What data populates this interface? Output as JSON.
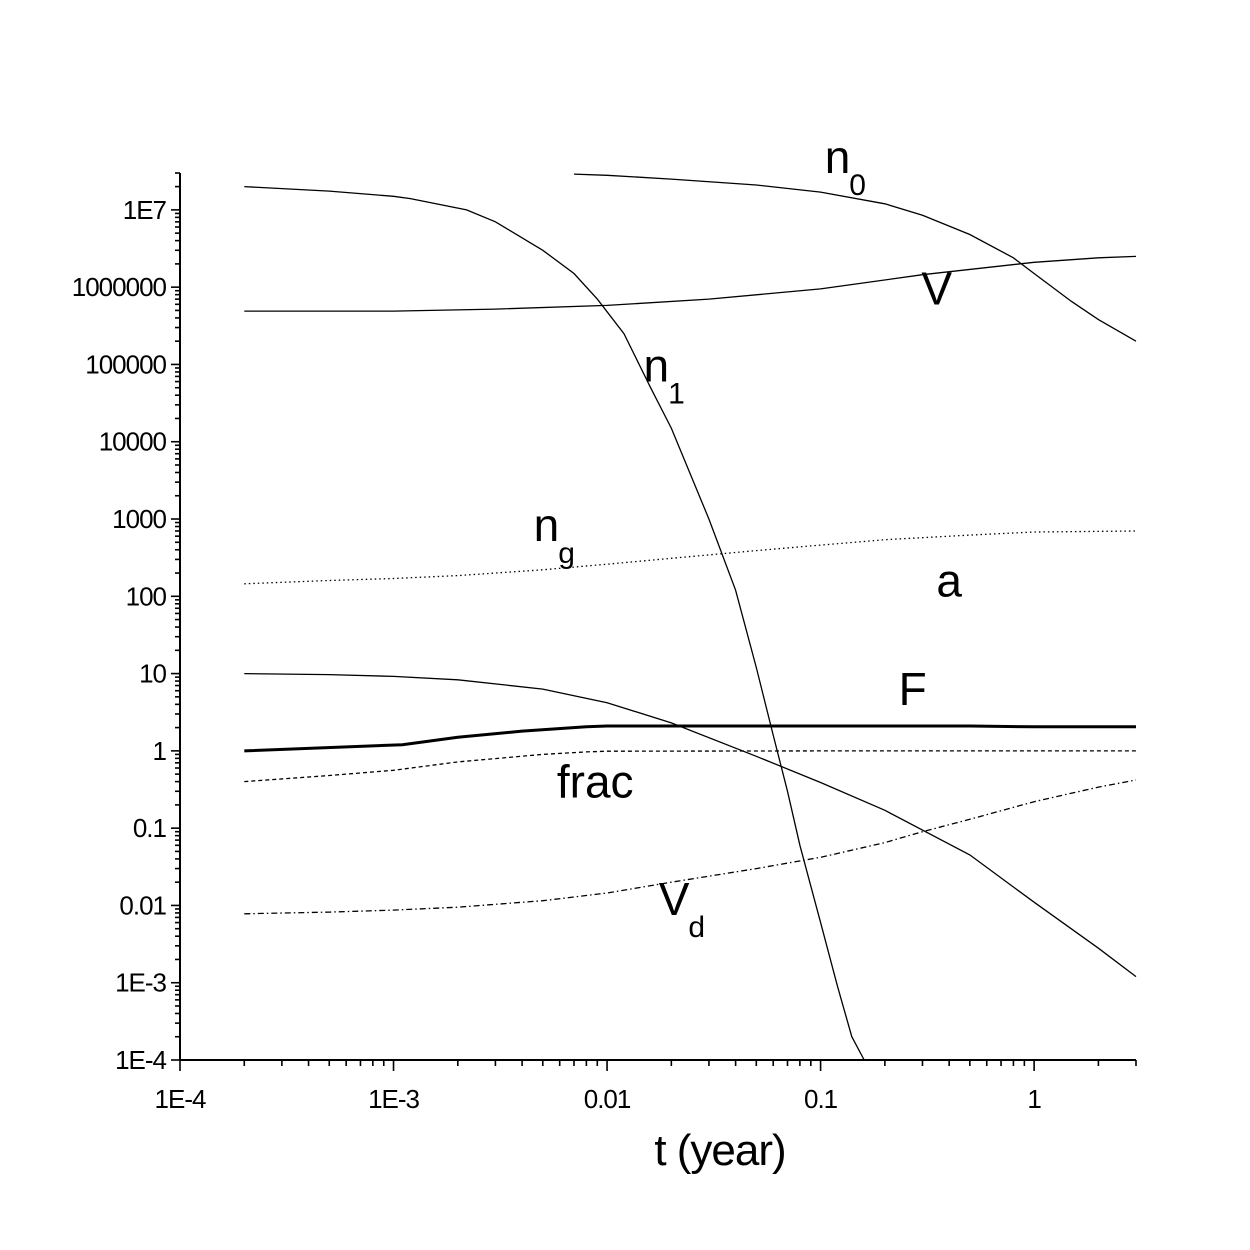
{
  "chart_data": {
    "type": "line",
    "title": "",
    "xlabel": "t (year)",
    "ylabel": "",
    "xscale": "log",
    "yscale": "log",
    "xlim": [
      0.0001,
      3
    ],
    "ylim": [
      0.0001,
      30000000
    ],
    "grid": false,
    "legend": "none",
    "x_ticks": [
      "1E-4",
      "1E-3",
      "0.01",
      "0.1",
      "1"
    ],
    "x_tick_values": [
      0.0001,
      0.001,
      0.01,
      0.1,
      1
    ],
    "y_ticks": [
      "1E-4",
      "1E-3",
      "0.01",
      "0.1",
      "1",
      "10",
      "100",
      "1000",
      "10000",
      "100000",
      "1000000",
      "1E7"
    ],
    "y_tick_values": [
      0.0001,
      0.001,
      0.01,
      0.1,
      1,
      10,
      100,
      1000,
      10000,
      100000,
      1000000,
      10000000
    ],
    "annotations": [
      {
        "id": "n0",
        "text": "n",
        "sub": "0",
        "x": 0.12,
        "y": 30000000
      },
      {
        "id": "V",
        "text": "V",
        "sub": "",
        "x": 0.35,
        "y": 600000
      },
      {
        "id": "n1",
        "text": "n",
        "sub": "1",
        "x": 0.017,
        "y": 60000
      },
      {
        "id": "ng",
        "text": "n",
        "sub": "g",
        "x": 0.0052,
        "y": 520
      },
      {
        "id": "a",
        "text": "a",
        "sub": "",
        "x": 0.4,
        "y": 100
      },
      {
        "id": "F",
        "text": "F",
        "sub": "",
        "x": 0.27,
        "y": 3.9
      },
      {
        "id": "frac",
        "text": "frac",
        "sub": "",
        "x": 0.0088,
        "y": 0.25
      },
      {
        "id": "Vd",
        "text": "V",
        "sub": "d",
        "x": 0.0206,
        "y": 0.0075
      }
    ],
    "series": [
      {
        "key": "n0",
        "style": "solid",
        "x": [
          0.007,
          0.01,
          0.02,
          0.05,
          0.1,
          0.2,
          0.3,
          0.5,
          0.8,
          1.0,
          1.5,
          2.0,
          3.0
        ],
        "y": [
          29000000,
          28000000,
          25000000,
          21000000,
          17000000,
          12000000,
          8500000,
          4800000,
          2400000,
          1500000,
          650000,
          380000,
          200000
        ]
      },
      {
        "key": "V",
        "style": "solid",
        "x": [
          0.0002,
          0.001,
          0.003,
          0.01,
          0.03,
          0.1,
          0.3,
          1.0,
          2.0,
          3.0
        ],
        "y": [
          490000,
          490000,
          520000,
          580000,
          700000,
          950000,
          1450000,
          2100000,
          2400000,
          2500000
        ]
      },
      {
        "key": "n1",
        "style": "solid",
        "x": [
          0.0002,
          0.0005,
          0.001,
          0.0012,
          0.0022,
          0.003,
          0.005,
          0.007,
          0.009,
          0.012,
          0.016,
          0.02,
          0.03,
          0.04,
          0.05,
          0.06,
          0.07,
          0.08,
          0.1,
          0.12,
          0.14,
          0.16
        ],
        "y": [
          20000000,
          17500000,
          15000000,
          14000000,
          10000000,
          7000000,
          3000000,
          1500000,
          700000,
          250000,
          50000,
          15000,
          1000,
          120,
          12,
          1.6,
          0.3,
          0.06,
          0.006,
          0.0009,
          0.0002,
          0.0001
        ]
      },
      {
        "key": "ng",
        "style": "dotted",
        "x": [
          0.0002,
          0.0005,
          0.001,
          0.002,
          0.005,
          0.01,
          0.02,
          0.05,
          0.1,
          0.2,
          0.5,
          1.0,
          3.0
        ],
        "y": [
          145,
          160,
          170,
          185,
          220,
          260,
          310,
          390,
          460,
          540,
          620,
          680,
          700
        ]
      },
      {
        "key": "a",
        "style": "solid",
        "x": [
          0.0002,
          0.0005,
          0.001,
          0.002,
          0.005,
          0.01,
          0.02,
          0.05,
          0.1,
          0.2,
          0.5,
          1.0,
          2.0,
          3.0
        ],
        "y": [
          10,
          9.7,
          9.2,
          8.3,
          6.3,
          4.2,
          2.3,
          0.85,
          0.39,
          0.17,
          0.045,
          0.011,
          0.0028,
          0.0012
        ]
      },
      {
        "key": "F",
        "style": "thick",
        "x": [
          0.0002,
          0.0011,
          0.002,
          0.004,
          0.008,
          0.01,
          0.1,
          0.5,
          1.0,
          3.0
        ],
        "y": [
          1.0,
          1.2,
          1.5,
          1.8,
          2.05,
          2.1,
          2.1,
          2.1,
          2.05,
          2.05
        ]
      },
      {
        "key": "frac",
        "style": "dashed",
        "x": [
          0.0002,
          0.0005,
          0.001,
          0.002,
          0.005,
          0.008,
          0.01,
          0.1,
          1.0,
          3.0
        ],
        "y": [
          0.4,
          0.48,
          0.56,
          0.72,
          0.9,
          0.97,
          0.99,
          1.0,
          1.0,
          1.0
        ]
      },
      {
        "key": "Vd",
        "style": "dashdot",
        "x": [
          0.0002,
          0.0005,
          0.001,
          0.002,
          0.005,
          0.01,
          0.02,
          0.05,
          0.1,
          0.2,
          0.3,
          0.5,
          1.0,
          2.0,
          3.0
        ],
        "y": [
          0.0078,
          0.0082,
          0.0087,
          0.0095,
          0.0115,
          0.0145,
          0.02,
          0.03,
          0.042,
          0.065,
          0.09,
          0.13,
          0.22,
          0.34,
          0.42
        ]
      }
    ]
  }
}
